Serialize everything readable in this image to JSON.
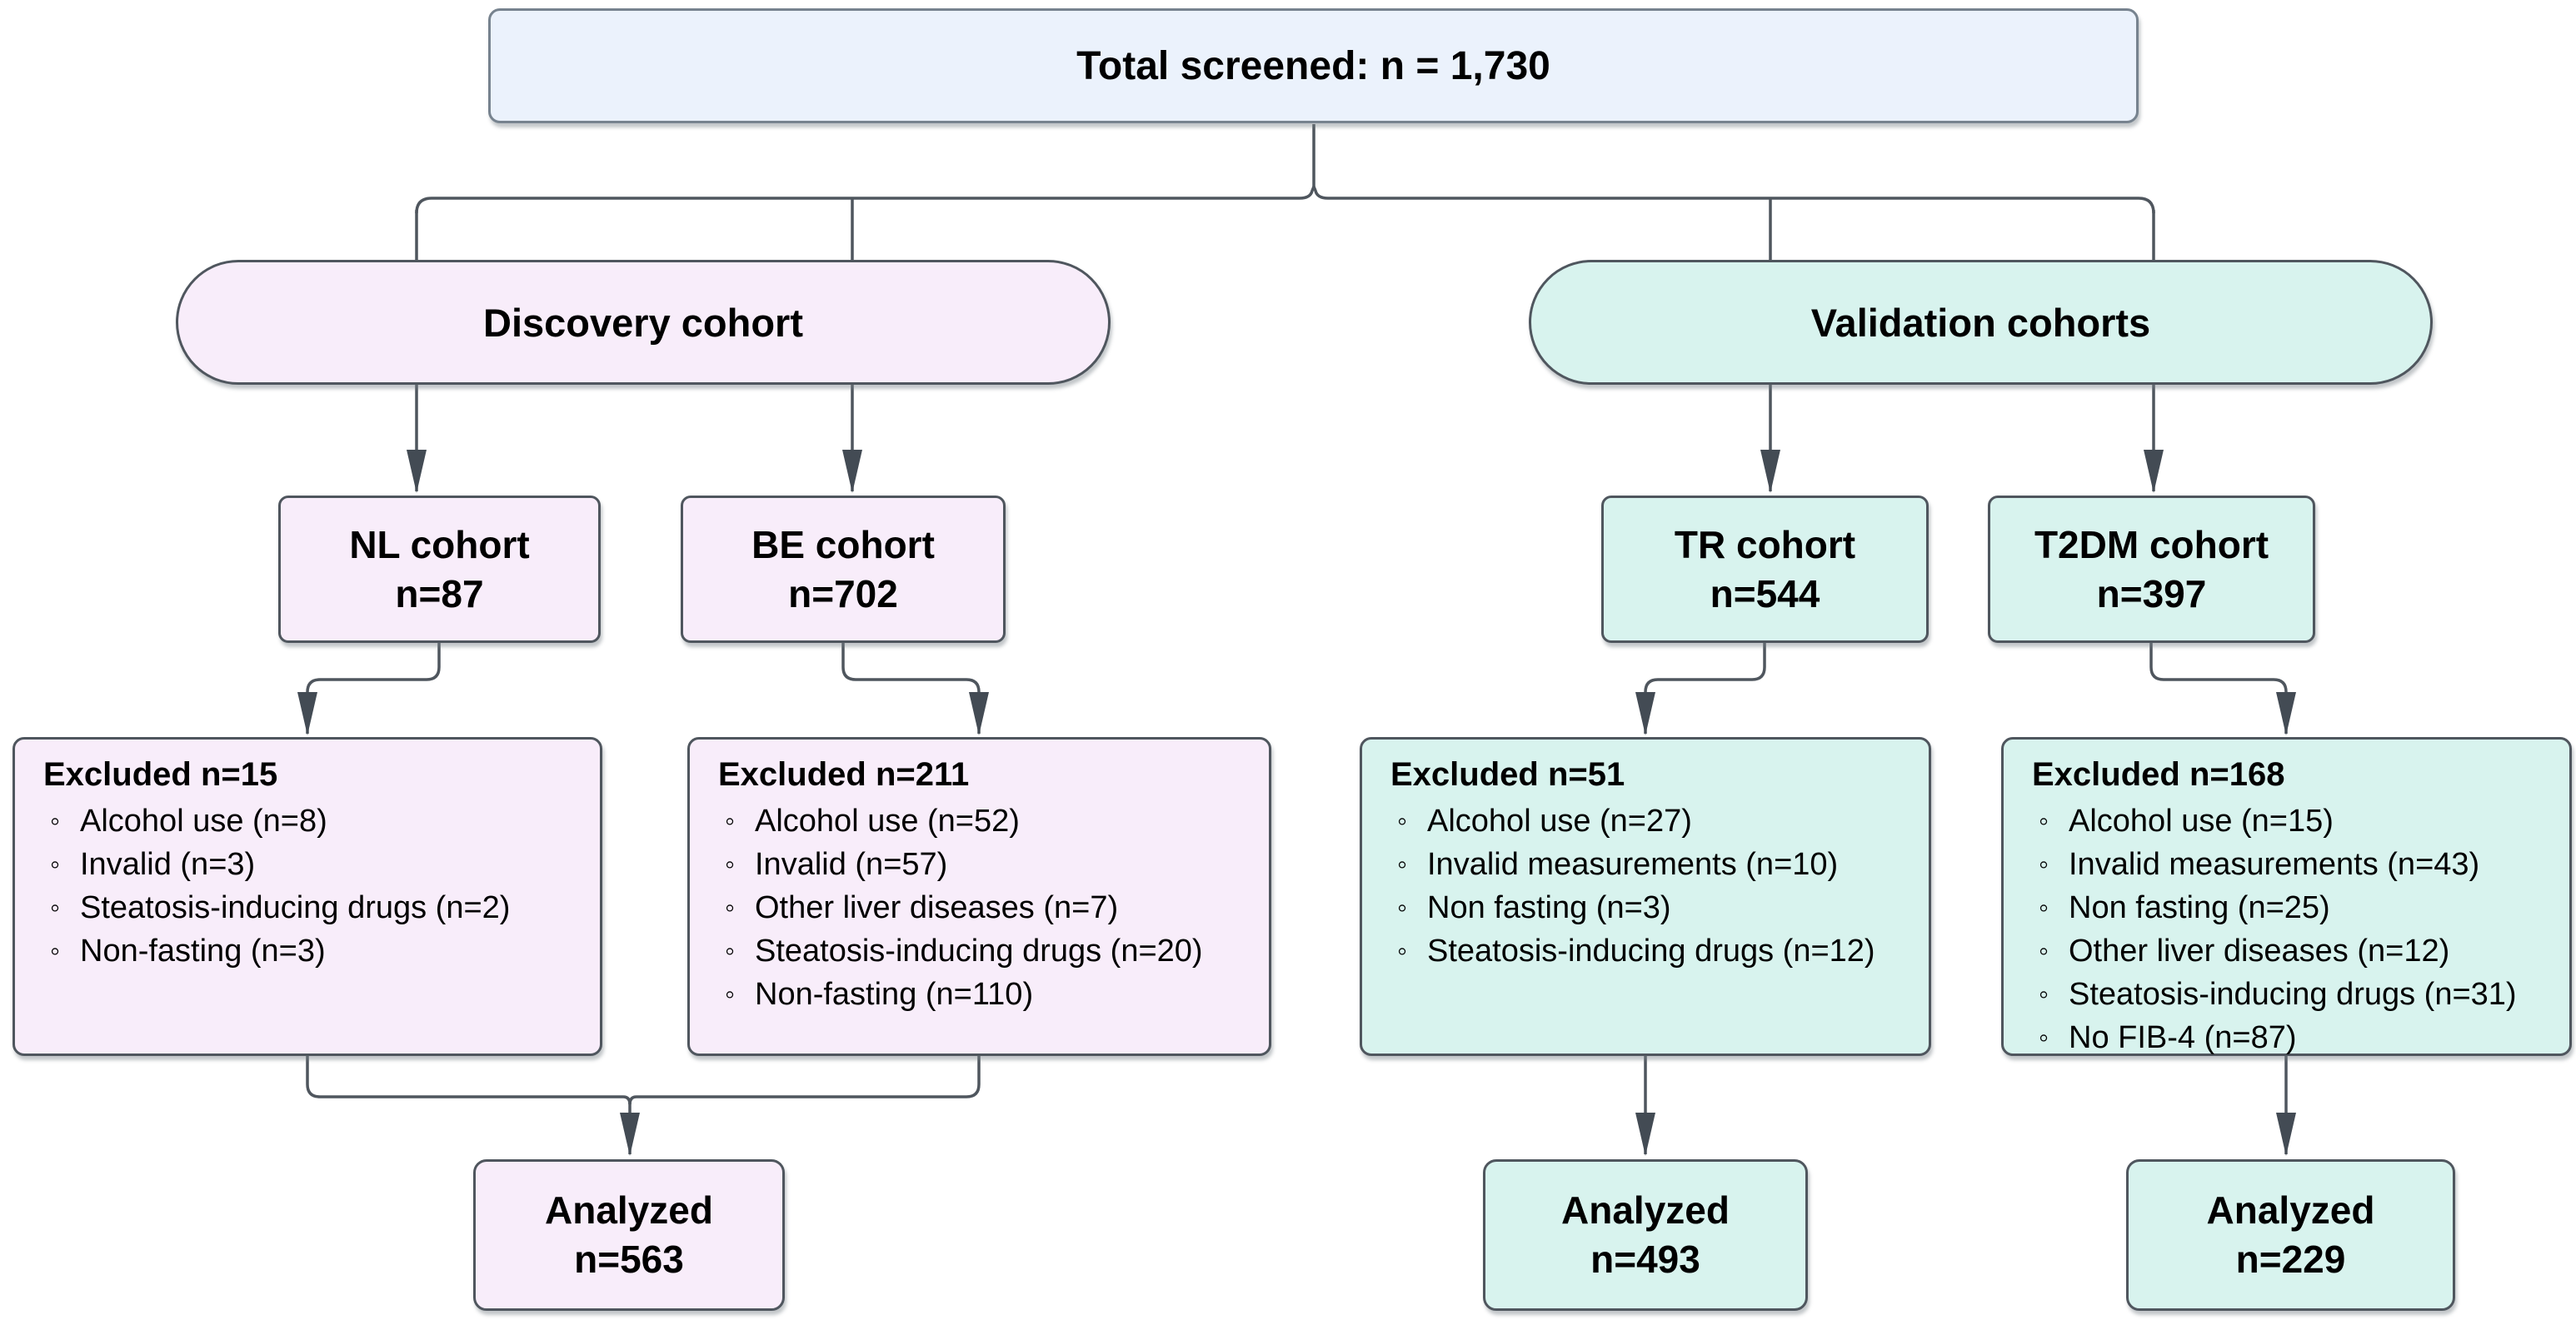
{
  "colors": {
    "c-blue": "#ebf2fc",
    "c-border-blue": "#77838f",
    "c-lavender": "#f8edfa",
    "c-mint": "#d8f3ee",
    "c-stroke": "#4f565e",
    "c-arrow": "#434b54"
  },
  "total": {
    "label": "Total screened: n = 1,730"
  },
  "pills": {
    "discovery": "Discovery cohort",
    "validation": "Validation cohorts"
  },
  "cohorts": {
    "nl": {
      "name": "NL cohort",
      "n": "n=87"
    },
    "be": {
      "name": "BE cohort",
      "n": "n=702"
    },
    "tr": {
      "name": "TR cohort",
      "n": "n=544"
    },
    "t2dm": {
      "name": "T2DM cohort",
      "n": "n=397"
    }
  },
  "excluded": {
    "nl": {
      "header": "Excluded n=15",
      "items": [
        "Alcohol use (n=8)",
        "Invalid (n=3)",
        "Steatosis-inducing drugs (n=2)",
        "Non-fasting (n=3)"
      ]
    },
    "be": {
      "header": "Excluded n=211",
      "items": [
        "Alcohol use (n=52)",
        "Invalid (n=57)",
        "Other liver diseases (n=7)",
        "Steatosis-inducing drugs (n=20)",
        "Non-fasting (n=110)"
      ]
    },
    "tr": {
      "header": "Excluded n=51",
      "items": [
        "Alcohol use (n=27)",
        "Invalid measurements (n=10)",
        "Non fasting (n=3)",
        "Steatosis-inducing drugs (n=12)"
      ]
    },
    "t2dm": {
      "header": "Excluded n=168",
      "items": [
        "Alcohol use (n=15)",
        "Invalid measurements (n=43)",
        "Non fasting (n=25)",
        "Other liver diseases (n=12)",
        "Steatosis-inducing drugs (n=31)",
        "No FIB-4 (n=87)"
      ]
    }
  },
  "analyzed": {
    "discovery": {
      "label": "Analyzed",
      "n": "n=563"
    },
    "tr": {
      "label": "Analyzed",
      "n": "n=493"
    },
    "t2dm": {
      "label": "Analyzed",
      "n": "n=229"
    }
  }
}
